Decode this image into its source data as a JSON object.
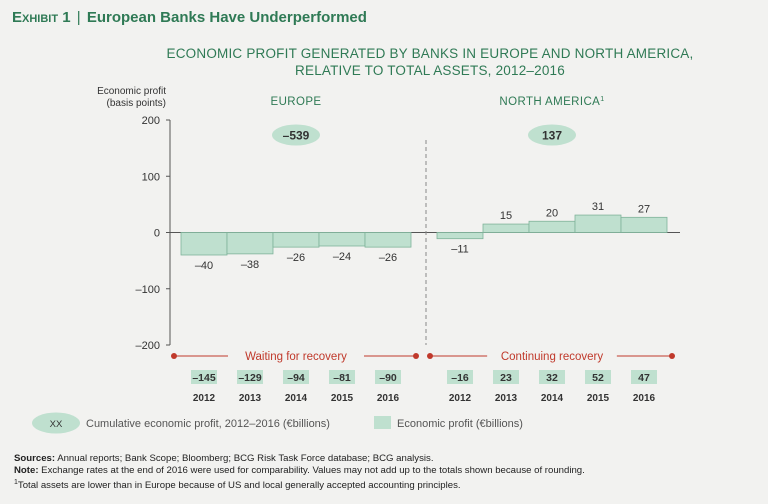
{
  "exhibit": {
    "label": "Exhibit 1",
    "separator": "|",
    "title": "European Banks Have Underperformed"
  },
  "chart_title": {
    "line1": "ECONOMIC PROFIT GENERATED BY BANKS IN EUROPE AND NORTH AMERICA,",
    "line2": "RELATIVE TO TOTAL ASSETS, 2012–2016"
  },
  "chart_data": {
    "type": "bar",
    "ylabel_line1": "Economic profit",
    "ylabel_line2": "(basis points)",
    "ylim": [
      -200,
      200
    ],
    "yticks": [
      200,
      100,
      0,
      -100,
      -200
    ],
    "ytick_labels": [
      "200",
      "100",
      "0",
      "–100",
      "–200"
    ],
    "bar_color": "#bfe0cf",
    "bar_stroke": "#7fb39a",
    "groups": [
      {
        "name": "EUROPE",
        "cumulative": "–539",
        "categories": [
          "2012",
          "2013",
          "2014",
          "2015",
          "2016"
        ],
        "values": [
          -40,
          -38,
          -26,
          -24,
          -26
        ],
        "value_labels": [
          "–40",
          "–38",
          "–26",
          "–24",
          "–26"
        ],
        "billions": [
          "–145",
          "–129",
          "–94",
          "–81",
          "–90"
        ],
        "annotation": "Waiting for recovery"
      },
      {
        "name": "NORTH AMERICA",
        "name_sup": "1",
        "cumulative": "137",
        "categories": [
          "2012",
          "2013",
          "2014",
          "2015",
          "2016"
        ],
        "values": [
          -11,
          15,
          20,
          31,
          27
        ],
        "value_labels": [
          "–11",
          "15",
          "20",
          "31",
          "27"
        ],
        "billions": [
          "–16",
          "23",
          "32",
          "52",
          "47"
        ],
        "annotation": "Continuing recovery"
      }
    ],
    "legend": {
      "oval_text": "XX",
      "oval_label": "Cumulative economic profit, 2012–2016 (€billions)",
      "box_label": "Economic profit (€billions)"
    }
  },
  "footnotes": {
    "sources_label": "Sources:",
    "sources_text": " Annual reports; Bank Scope; Bloomberg; BCG Risk Task Force database; BCG analysis.",
    "note_label": "Note:",
    "note_text": " Exchange rates at the end of 2016 were used for comparability. Values may not add up to the totals shown because of rounding.",
    "sup": "1",
    "footnote_text": "Total assets are lower than in Europe because of US and local generally accepted accounting principles."
  },
  "colors": {
    "green": "#2f7a55",
    "red": "#c0392b",
    "oval_fill": "#bfe0cf"
  }
}
